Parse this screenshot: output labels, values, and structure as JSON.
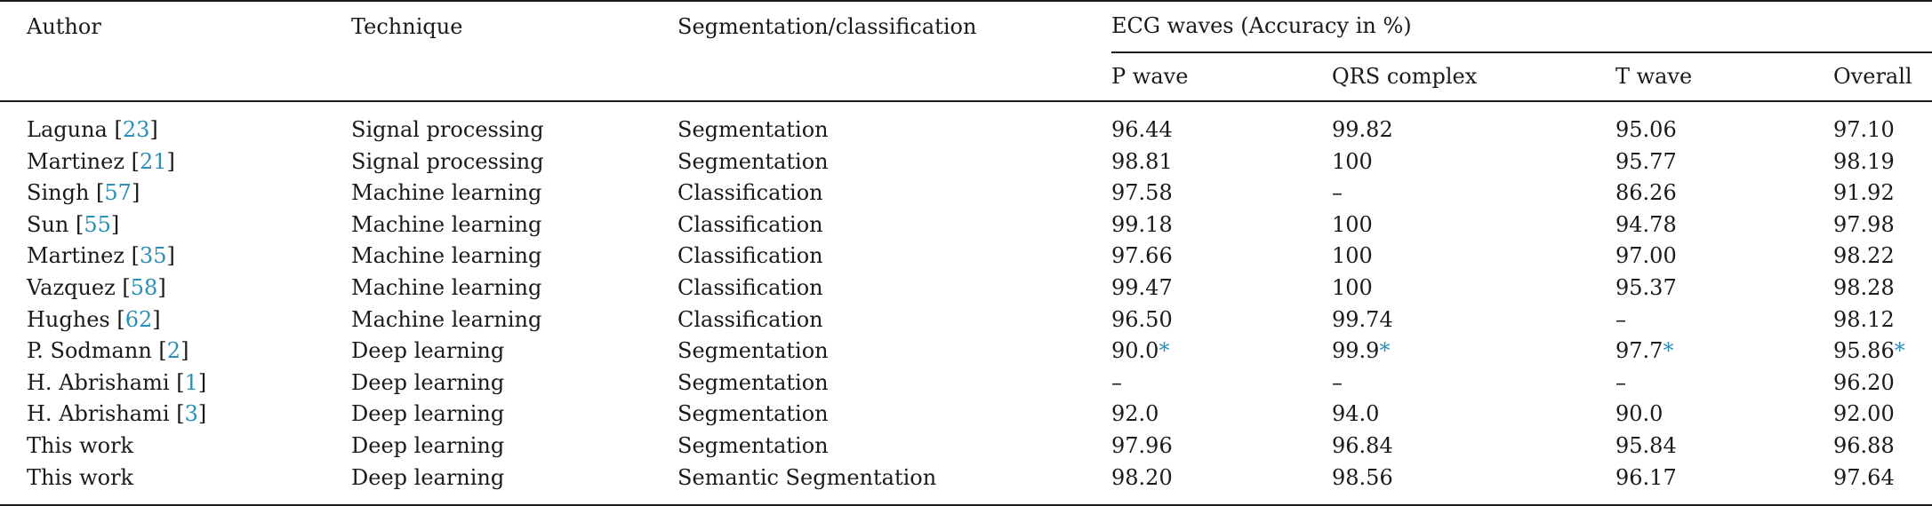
{
  "table": {
    "headers": {
      "author": "Author",
      "technique": "Technique",
      "seg_class": "Segmentation/classification",
      "ecg_group": "ECG waves (Accuracy in %)",
      "p_wave": "P wave",
      "qrs": "QRS complex",
      "t_wave": "T wave",
      "overall": "Overall"
    },
    "rows": [
      {
        "author": "Laguna ",
        "ref": "23",
        "ref_close": "]",
        "ref_open": "[",
        "technique": "Signal processing",
        "type": "Segmentation",
        "p": "96.44",
        "qrs": "99.82",
        "t": "95.06",
        "overall": "97.10"
      },
      {
        "author": "Martinez ",
        "ref": "21",
        "ref_close": "]",
        "ref_open": "[",
        "technique": "Signal processing",
        "type": "Segmentation",
        "p": "98.81",
        "qrs": "100",
        "t": "95.77",
        "overall": "98.19"
      },
      {
        "author": "Singh ",
        "ref": "57",
        "ref_close": "]",
        "ref_open": "[",
        "technique": "Machine learning",
        "type": "Classification",
        "p": "97.58",
        "qrs": "–",
        "t": "86.26",
        "overall": "91.92"
      },
      {
        "author": "Sun ",
        "ref": "55",
        "ref_close": "]",
        "ref_open": "[",
        "technique": "Machine learning",
        "type": "Classification",
        "p": "99.18",
        "qrs": "100",
        "t": "94.78",
        "overall": "97.98"
      },
      {
        "author": "Martinez ",
        "ref": "35",
        "ref_close": "]",
        "ref_open": "[",
        "technique": "Machine learning",
        "type": "Classification",
        "p": "97.66",
        "qrs": "100",
        "t": "97.00",
        "overall": "98.22"
      },
      {
        "author": "Vazquez ",
        "ref": "58",
        "ref_close": "]",
        "ref_open": "[",
        "technique": "Machine learning",
        "type": "Classification",
        "p": "99.47",
        "qrs": "100",
        "t": "95.37",
        "overall": "98.28"
      },
      {
        "author": "Hughes ",
        "ref": "62",
        "ref_close": "]",
        "ref_open": "[",
        "technique": "Machine learning",
        "type": "Classification",
        "p": "96.50",
        "qrs": "99.74",
        "t": "–",
        "overall": "98.12"
      },
      {
        "author": "P. Sodmann ",
        "ref": "2",
        "ref_close": "]",
        "ref_open": "[",
        "technique": "Deep learning",
        "type": "Segmentation",
        "p": "90.0",
        "p_ast": "*",
        "qrs": "99.9",
        "qrs_ast": "*",
        "t": "97.7",
        "t_ast": "*",
        "overall": "95.86",
        "overall_ast": "*"
      },
      {
        "author": "H. Abrishami ",
        "ref": "1",
        "ref_close": "]",
        "ref_open": "[",
        "technique": "Deep learning",
        "type": "Segmentation",
        "p": "–",
        "qrs": "–",
        "t": "–",
        "overall": "96.20"
      },
      {
        "author": "H. Abrishami ",
        "ref": "3",
        "ref_close": "]",
        "ref_open": "[",
        "technique": "Deep learning",
        "type": "Segmentation",
        "p": "92.0",
        "qrs": "94.0",
        "t": "90.0",
        "overall": "92.00"
      },
      {
        "author": "This work",
        "technique": "Deep learning",
        "type": "Segmentation",
        "p": "97.96",
        "qrs": "96.84",
        "t": "95.84",
        "overall": "96.88"
      },
      {
        "author": "This work",
        "technique": "Deep learning",
        "type": "Semantic Segmentation",
        "p": "98.20",
        "qrs": "98.56",
        "t": "96.17",
        "overall": "97.64"
      }
    ]
  }
}
